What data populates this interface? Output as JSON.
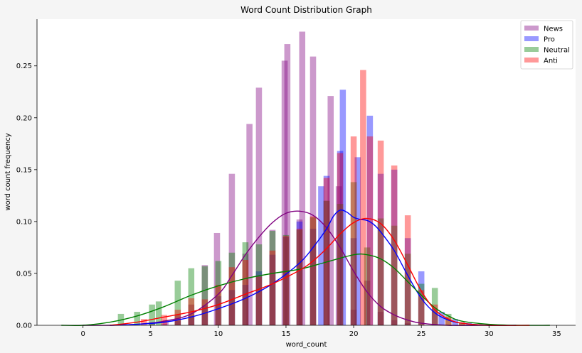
{
  "chart_data": {
    "type": "bar",
    "title": "Word Count Distribution Graph",
    "xlabel": "word_count",
    "ylabel": "word count frequency",
    "xlim": [
      -3.4,
      36.4
    ],
    "ylim": [
      0,
      0.295
    ],
    "xticks": [
      0,
      5,
      10,
      15,
      20,
      25,
      30,
      35
    ],
    "yticks": [
      0.0,
      0.05,
      0.1,
      0.15,
      0.2,
      0.25
    ],
    "ytick_labels": [
      "0.00",
      "0.05",
      "0.10",
      "0.15",
      "0.20",
      "0.25"
    ],
    "bin_width": 0.45,
    "legend_position": "top-right",
    "series": [
      {
        "name": "News",
        "color": "#800080",
        "bars": [
          [
            2.8,
            0.001
          ],
          [
            5.1,
            0.003
          ],
          [
            6.1,
            0.005
          ],
          [
            7.0,
            0.01
          ],
          [
            8.0,
            0.02
          ],
          [
            9.0,
            0.058
          ],
          [
            9.9,
            0.089
          ],
          [
            11.0,
            0.146
          ],
          [
            12.0,
            0.069
          ],
          [
            12.3,
            0.194
          ],
          [
            13.0,
            0.229
          ],
          [
            14.0,
            0.092
          ],
          [
            14.9,
            0.255
          ],
          [
            15.1,
            0.271
          ],
          [
            16.0,
            0.102
          ],
          [
            16.2,
            0.283
          ],
          [
            17.0,
            0.259
          ],
          [
            18.0,
            0.12
          ],
          [
            18.3,
            0.221
          ],
          [
            18.9,
            0.134
          ],
          [
            20.0,
            0.015
          ],
          [
            21.0,
            0.043
          ],
          [
            22.0,
            0.013
          ],
          [
            23.0,
            0.005
          ],
          [
            24.0,
            0.002
          ]
        ],
        "kde": [
          [
            0,
            0.0
          ],
          [
            2,
            0.0
          ],
          [
            4,
            0.001
          ],
          [
            6,
            0.004
          ],
          [
            8,
            0.011
          ],
          [
            10,
            0.03
          ],
          [
            11,
            0.048
          ],
          [
            12,
            0.068
          ],
          [
            13,
            0.085
          ],
          [
            14,
            0.099
          ],
          [
            15,
            0.108
          ],
          [
            16,
            0.11
          ],
          [
            17,
            0.106
          ],
          [
            18,
            0.094
          ],
          [
            19,
            0.075
          ],
          [
            20,
            0.052
          ],
          [
            21,
            0.032
          ],
          [
            22,
            0.018
          ],
          [
            23,
            0.01
          ],
          [
            24,
            0.005
          ],
          [
            25,
            0.002
          ],
          [
            27,
            0.0
          ],
          [
            30,
            0.0
          ]
        ]
      },
      {
        "name": "Pro",
        "color": "#0000ff",
        "bars": [
          [
            6.0,
            0.001
          ],
          [
            7.0,
            0.004
          ],
          [
            8.0,
            0.009
          ],
          [
            9.0,
            0.019
          ],
          [
            10.0,
            0.028
          ],
          [
            11.0,
            0.034
          ],
          [
            12.0,
            0.039
          ],
          [
            13.0,
            0.052
          ],
          [
            14.0,
            0.068
          ],
          [
            15.0,
            0.085
          ],
          [
            16.0,
            0.1
          ],
          [
            17.0,
            0.093
          ],
          [
            17.6,
            0.134
          ],
          [
            18.0,
            0.144
          ],
          [
            19.0,
            0.168
          ],
          [
            19.2,
            0.227
          ],
          [
            20.0,
            0.084
          ],
          [
            20.3,
            0.162
          ],
          [
            21.2,
            0.202
          ],
          [
            22.0,
            0.146
          ],
          [
            23.0,
            0.15
          ],
          [
            24.0,
            0.084
          ],
          [
            25.0,
            0.052
          ],
          [
            26.0,
            0.016
          ],
          [
            26.5,
            0.013
          ],
          [
            27.5,
            0.006
          ],
          [
            28.5,
            0.002
          ]
        ],
        "kde": [
          [
            2,
            0.0
          ],
          [
            4,
            0.001
          ],
          [
            6,
            0.003
          ],
          [
            8,
            0.008
          ],
          [
            10,
            0.016
          ],
          [
            12,
            0.026
          ],
          [
            14,
            0.04
          ],
          [
            16,
            0.06
          ],
          [
            17,
            0.075
          ],
          [
            18,
            0.093
          ],
          [
            18.5,
            0.105
          ],
          [
            19,
            0.111
          ],
          [
            19.5,
            0.109
          ],
          [
            20,
            0.104
          ],
          [
            20.5,
            0.102
          ],
          [
            21,
            0.101
          ],
          [
            21.5,
            0.097
          ],
          [
            22,
            0.09
          ],
          [
            23,
            0.072
          ],
          [
            24,
            0.048
          ],
          [
            25,
            0.026
          ],
          [
            26,
            0.012
          ],
          [
            27,
            0.005
          ],
          [
            28,
            0.002
          ],
          [
            30,
            0.0
          ],
          [
            32,
            0.0
          ]
        ]
      },
      {
        "name": "Neutral",
        "color": "#008000",
        "bars": [
          [
            2.8,
            0.011
          ],
          [
            4.0,
            0.013
          ],
          [
            5.1,
            0.02
          ],
          [
            5.6,
            0.023
          ],
          [
            7.0,
            0.043
          ],
          [
            8.0,
            0.055
          ],
          [
            9.0,
            0.057
          ],
          [
            10.0,
            0.062
          ],
          [
            11.0,
            0.07
          ],
          [
            12.0,
            0.08
          ],
          [
            13.0,
            0.078
          ],
          [
            14.0,
            0.091
          ],
          [
            15.0,
            0.087
          ],
          [
            16.0,
            0.092
          ],
          [
            17.0,
            0.104
          ],
          [
            18.0,
            0.12
          ],
          [
            19.0,
            0.117
          ],
          [
            20.0,
            0.138
          ],
          [
            21.0,
            0.075
          ],
          [
            22.0,
            0.103
          ],
          [
            23.0,
            0.096
          ],
          [
            24.0,
            0.069
          ],
          [
            25.0,
            0.04
          ],
          [
            26.0,
            0.036
          ],
          [
            27.0,
            0.011
          ],
          [
            28.0,
            0.002
          ]
        ],
        "kde": [
          [
            -1.6,
            0.0
          ],
          [
            0,
            0.0
          ],
          [
            2,
            0.003
          ],
          [
            4,
            0.009
          ],
          [
            6,
            0.018
          ],
          [
            8,
            0.029
          ],
          [
            10,
            0.038
          ],
          [
            12,
            0.045
          ],
          [
            14,
            0.05
          ],
          [
            16,
            0.054
          ],
          [
            18,
            0.061
          ],
          [
            20,
            0.068
          ],
          [
            21,
            0.068
          ],
          [
            22,
            0.064
          ],
          [
            23,
            0.055
          ],
          [
            24,
            0.042
          ],
          [
            25,
            0.029
          ],
          [
            26,
            0.017
          ],
          [
            27,
            0.009
          ],
          [
            28,
            0.004
          ],
          [
            30,
            0.001
          ],
          [
            32,
            0.0
          ],
          [
            34.5,
            0.0
          ]
        ]
      },
      {
        "name": "Anti",
        "color": "#ff0000",
        "bars": [
          [
            4.5,
            0.006
          ],
          [
            6.0,
            0.01
          ],
          [
            7.0,
            0.015
          ],
          [
            8.0,
            0.026
          ],
          [
            9.0,
            0.025
          ],
          [
            10.0,
            0.039
          ],
          [
            11.0,
            0.056
          ],
          [
            12.0,
            0.063
          ],
          [
            13.0,
            0.047
          ],
          [
            14.0,
            0.072
          ],
          [
            15.0,
            0.086
          ],
          [
            16.0,
            0.093
          ],
          [
            17.0,
            0.105
          ],
          [
            18.0,
            0.142
          ],
          [
            19.0,
            0.166
          ],
          [
            20.0,
            0.182
          ],
          [
            20.7,
            0.246
          ],
          [
            21.2,
            0.182
          ],
          [
            22.0,
            0.178
          ],
          [
            23.0,
            0.154
          ],
          [
            24.0,
            0.106
          ],
          [
            25.0,
            0.034
          ],
          [
            26.0,
            0.02
          ],
          [
            27.0,
            0.008
          ],
          [
            28.0,
            0.003
          ]
        ],
        "kde": [
          [
            2,
            0.0
          ],
          [
            4,
            0.003
          ],
          [
            6,
            0.008
          ],
          [
            8,
            0.013
          ],
          [
            10,
            0.02
          ],
          [
            12,
            0.03
          ],
          [
            14,
            0.04
          ],
          [
            16,
            0.053
          ],
          [
            17,
            0.062
          ],
          [
            18,
            0.074
          ],
          [
            19,
            0.088
          ],
          [
            20,
            0.099
          ],
          [
            21,
            0.103
          ],
          [
            22,
            0.098
          ],
          [
            23,
            0.082
          ],
          [
            24,
            0.058
          ],
          [
            25,
            0.033
          ],
          [
            26,
            0.015
          ],
          [
            27,
            0.006
          ],
          [
            28,
            0.002
          ],
          [
            30,
            0.0
          ],
          [
            33,
            0.0
          ]
        ]
      }
    ]
  }
}
